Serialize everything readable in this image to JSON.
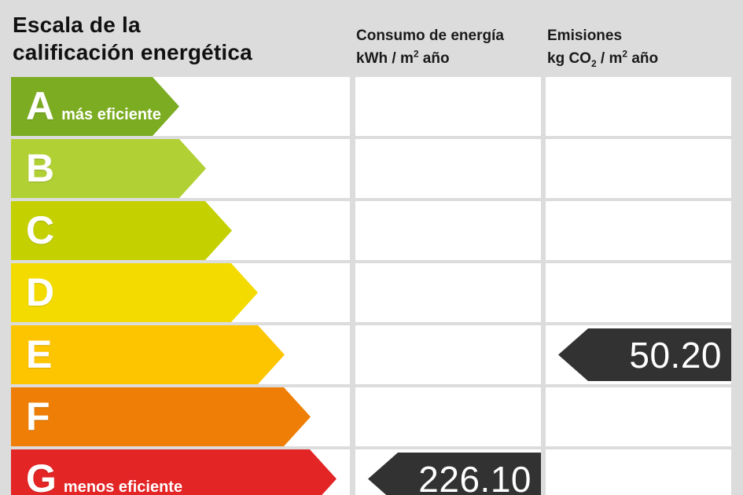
{
  "title": {
    "line1": "Escala de la",
    "line2": "calificación energética"
  },
  "headers": {
    "consumption": {
      "name": "Consumo de energía",
      "unit": {
        "p1": "kWh / m",
        "sup": "2",
        "p2": " año"
      }
    },
    "emissions": {
      "name": "Emisiones",
      "unit": {
        "p1": "kg CO",
        "sub": "2",
        "p2": " / m",
        "sup": "2",
        "p3": " año"
      }
    }
  },
  "scale": {
    "value_arrow_color": "#323232",
    "rows": [
      {
        "letter": "A",
        "note": "más eficiente",
        "color": "#7bac22",
        "arrow_width": 214,
        "consumption_value": null,
        "emissions_value": null
      },
      {
        "letter": "B",
        "note": "",
        "color": "#b1d034",
        "arrow_width": 248,
        "consumption_value": null,
        "emissions_value": null
      },
      {
        "letter": "C",
        "note": "",
        "color": "#c4d000",
        "arrow_width": 281,
        "consumption_value": null,
        "emissions_value": null
      },
      {
        "letter": "D",
        "note": "",
        "color": "#f3db00",
        "arrow_width": 314,
        "consumption_value": null,
        "emissions_value": null
      },
      {
        "letter": "E",
        "note": "",
        "color": "#fdc500",
        "arrow_width": 348,
        "consumption_value": null,
        "emissions_value": "50.20"
      },
      {
        "letter": "F",
        "note": "",
        "color": "#ee7e06",
        "arrow_width": 381,
        "consumption_value": null,
        "emissions_value": null
      },
      {
        "letter": "G",
        "note": "menos eficiente",
        "color": "#e32526",
        "arrow_width": 414,
        "consumption_value": "226.10",
        "emissions_value": null
      }
    ]
  },
  "chart_data": {
    "type": "bar",
    "title": "Escala de la calificación energética",
    "categories": [
      "A",
      "B",
      "C",
      "D",
      "E",
      "F",
      "G"
    ],
    "series": [
      {
        "name": "Consumo de energía kWh / m2 año",
        "values": [
          null,
          null,
          null,
          null,
          null,
          null,
          226.1
        ]
      },
      {
        "name": "Emisiones kg CO2 / m2 año",
        "values": [
          null,
          null,
          null,
          null,
          50.2,
          null,
          null
        ]
      }
    ],
    "annotations": [
      "A = más eficiente",
      "G = menos eficiente"
    ],
    "ratings": {
      "consumption_letter": "G",
      "consumption_value": 226.1,
      "emissions_letter": "E",
      "emissions_value": 50.2
    },
    "layout": {
      "orientation": "horizontal",
      "grid": false,
      "legend_position": "top"
    }
  }
}
